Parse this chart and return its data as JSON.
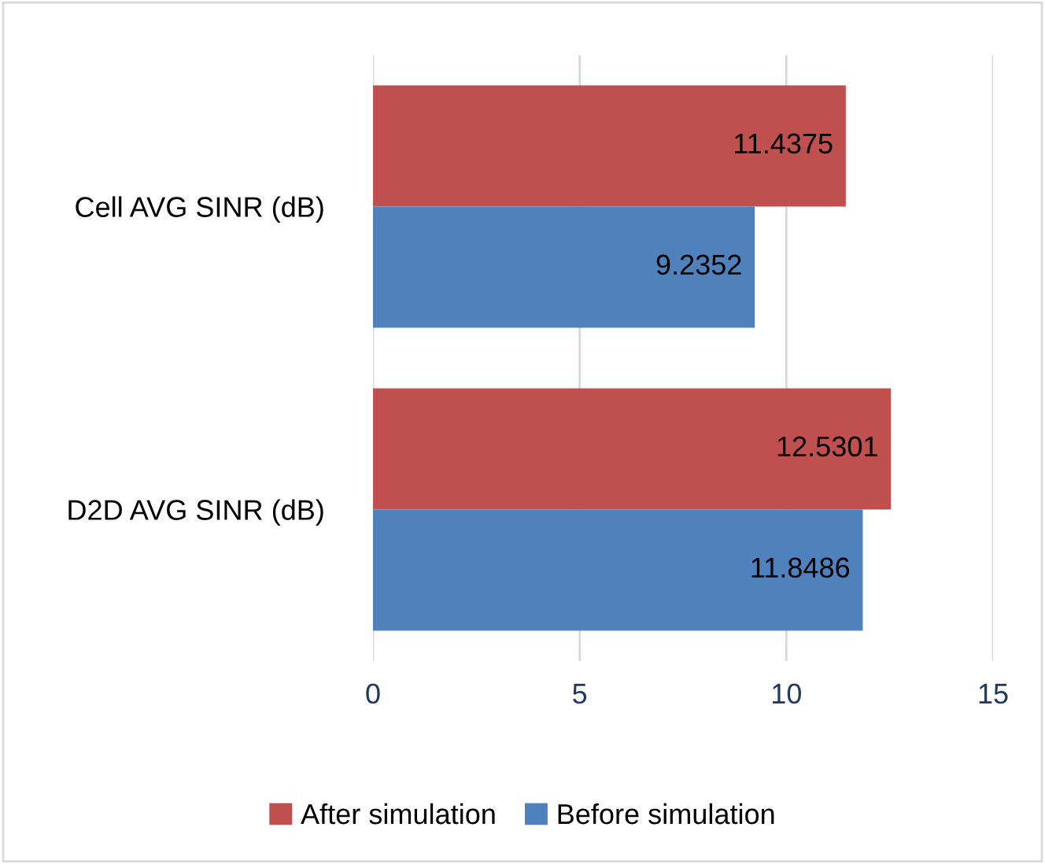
{
  "chart_data": {
    "type": "bar",
    "orientation": "horizontal",
    "categories": [
      "Cell AVG SINR (dB)",
      "D2D AVG SINR (dB)"
    ],
    "series": [
      {
        "name": "After simulation",
        "color": "#c0504d",
        "values": [
          11.4375,
          12.5301
        ]
      },
      {
        "name": "Before simulation",
        "color": "#4f81bd",
        "values": [
          9.2352,
          11.8486
        ]
      }
    ],
    "xlim": [
      0,
      15
    ],
    "xticks": [
      0,
      5,
      10,
      15
    ],
    "grid": "x",
    "legend": "bottom",
    "data_labels": true
  }
}
